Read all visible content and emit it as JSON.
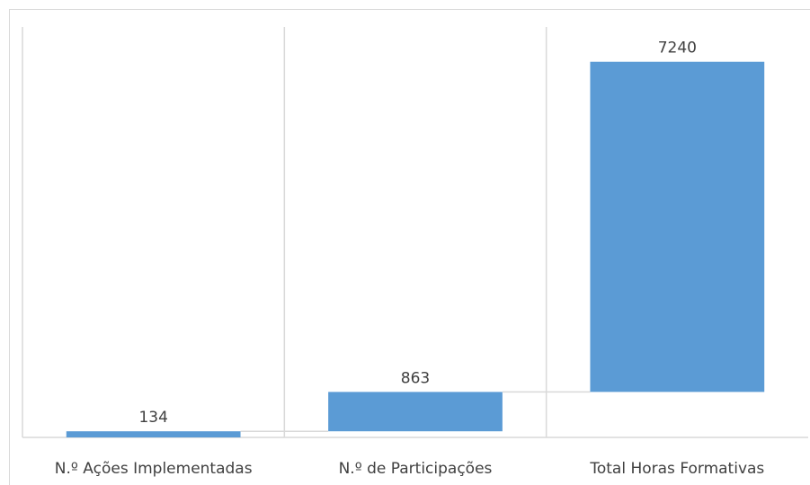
{
  "chart_data": {
    "type": "waterfall",
    "categories": [
      "N.º Ações Implementadas",
      "N.º de Participações",
      "Total Horas Formativas"
    ],
    "values": [
      134,
      863,
      7240
    ],
    "color": "#5b9bd5",
    "ylim": [
      0,
      9000
    ]
  }
}
